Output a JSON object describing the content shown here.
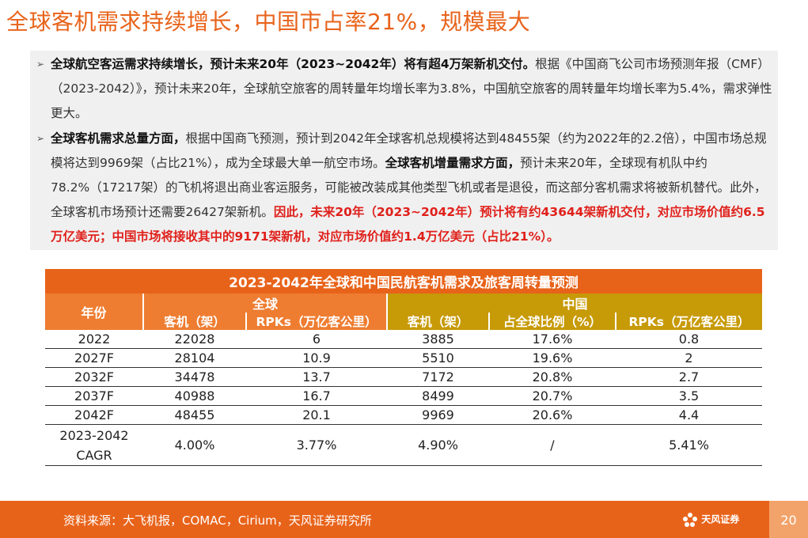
{
  "title": "全球客机需求持续增长，中国市占率21%，规模最大",
  "bullets": [
    {
      "bold1": "全球航空客运需求持续增长，预计未来20年（2023~2042年）将有超4万架新机交付。",
      "normal1": "根据《中国商飞公司市场预测年报（CMF）（2023-2042）》，预计未来20年，全球航空旅客的周转量年均增长率为3.8%，中国航空旅客的周转量年均增长率为5.4%，需求弹性更大。"
    },
    {
      "bold1": "全球客机需求总量方面，",
      "normal1": "根据中国商飞预测，预计到2042年全球客机总规模将达到48455架（约为2022年的2.2倍），中国市场总规模将达到9969架（占比21%），成为全球最大单一航空市场。",
      "bold2": "全球客机增量需求方面，",
      "normal2": "预计未来20年，全球现有机队中约78.2%（17217架）的飞机将退出商业客运服务，可能被改装成其他类型飞机或者是退役，而这部分客机需求将被新机替代。此外，全球客机市场预计还需要26427架新机。",
      "red": "因此，未来20年（2023~2042年）预计将有约43644架新机交付，对应市场价值约6.5万亿美元；中国市场将接收其中的9171架新机，对应市场价值约1.4万亿美元（占比21%）。"
    }
  ],
  "table": {
    "title": "2023-2042年全球和中国民航客机需求及旅客周转量预测",
    "year_header": "年份",
    "group_global": "全球",
    "group_china": "中国",
    "columns": [
      "客机（架）",
      "RPKs（万亿客公里）",
      "客机（架）",
      "占全球比例（%）",
      "RPKs（万亿客公里）"
    ],
    "rows": [
      [
        "2022",
        "22028",
        "6",
        "3885",
        "17.6%",
        "0.8"
      ],
      [
        "2027F",
        "28104",
        "10.9",
        "5510",
        "19.6%",
        "2"
      ],
      [
        "2032F",
        "34478",
        "13.7",
        "7172",
        "20.8%",
        "2.7"
      ],
      [
        "2037F",
        "40988",
        "16.7",
        "8499",
        "20.7%",
        "3.5"
      ],
      [
        "2042F",
        "48455",
        "20.1",
        "9969",
        "20.6%",
        "4.4"
      ]
    ],
    "cagr_row": {
      "label_line1": "2023-2042",
      "label_line2": "CAGR",
      "values": [
        "4.00%",
        "3.77%",
        "4.90%",
        "/",
        "5.41%"
      ]
    }
  },
  "footer": {
    "source": "资料来源：大飞机报，COMAC，Cirium，天风证券研究所",
    "logo_text": "天风证券",
    "page": "20"
  }
}
